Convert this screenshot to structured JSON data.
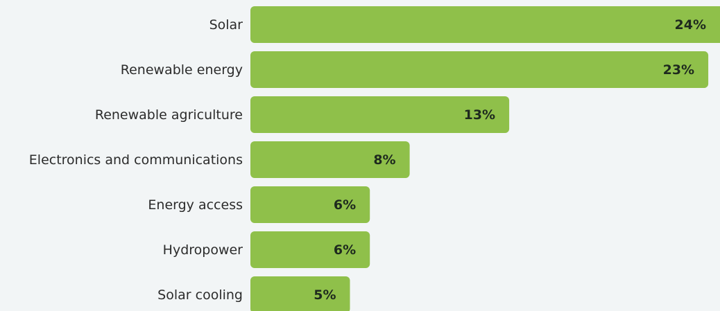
{
  "chart_data": {
    "type": "bar",
    "orientation": "horizontal",
    "categories": [
      "Solar",
      "Renewable energy",
      "Renewable agriculture",
      "Electronics and communications",
      "Energy access",
      "Hydropower",
      "Solar cooling"
    ],
    "values": [
      24,
      23,
      13,
      8,
      6,
      6,
      5
    ],
    "value_labels": [
      "24%",
      "23%",
      "13%",
      "8%",
      "6%",
      "6%",
      "5%"
    ],
    "color": "#8fc04a"
  }
}
